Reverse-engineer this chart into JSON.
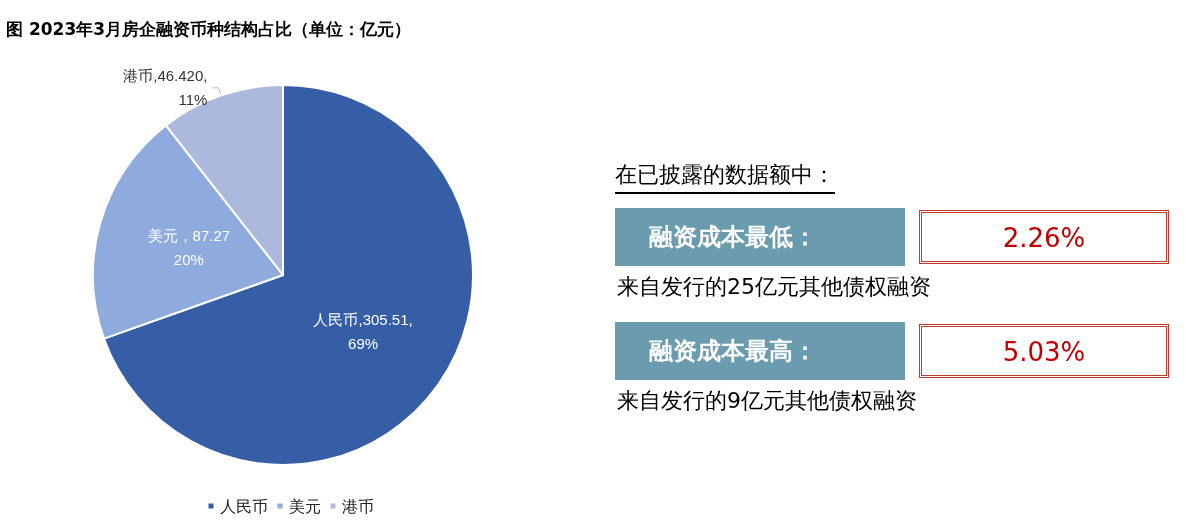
{
  "chart_data": [
    {
      "type": "pie",
      "title": "图  2023年3月房企融资币种结构占比（单位：亿元）",
      "categories": [
        "人民币",
        "美元",
        "港币"
      ],
      "values": [
        305.51,
        87.27,
        46.42
      ],
      "colors": [
        "#365ea6",
        "#8faadc",
        "#adb9dc"
      ],
      "value_labels": [
        "人民币,305.51,\n69%",
        "美元，87.27\n20%",
        "港币,46.420,\n11%"
      ],
      "legend": "bottom"
    },
    {
      "type": "other",
      "title": "在已披露的数据额中：",
      "annotations": [
        "融资成本最低：",
        "2.26%",
        "来自发行的25亿元其他债权融资",
        "融资成本最高：",
        "5.03%",
        "来自发行的9亿元其他债权融资"
      ]
    }
  ]
}
